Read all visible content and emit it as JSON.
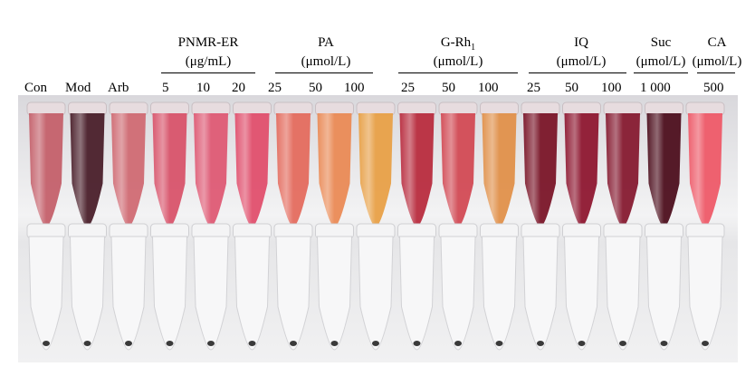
{
  "labels": {
    "con": "Con",
    "mod": "Mod",
    "arb": "Arb"
  },
  "groups": {
    "pnmr": {
      "name": "PNMR-ER",
      "unit": "(μg/mL)",
      "doses": [
        "5",
        "10",
        "20"
      ]
    },
    "pa": {
      "name": "PA",
      "unit": "(μmol/L)",
      "doses": [
        "25",
        "50",
        "100"
      ]
    },
    "grh": {
      "name": "G-Rh",
      "sub": "1",
      "unit": "(μmol/L)",
      "doses": [
        "25",
        "50",
        "100"
      ]
    },
    "iq": {
      "name": "IQ",
      "unit": "(μmol/L)",
      "doses": [
        "25",
        "50",
        "100"
      ]
    },
    "suc": {
      "name": "Suc",
      "unit": "(μmol/L)",
      "doses": [
        "1 000"
      ]
    },
    "ca": {
      "name": "CA",
      "unit": "(μmol/L)",
      "doses": [
        "500"
      ]
    }
  },
  "tube_colors": [
    "#c4606a",
    "#4a1f2a",
    "#d06a73",
    "#d8536a",
    "#de5a74",
    "#e04f6d",
    "#e46b5e",
    "#ea8a55",
    "#e8a047",
    "#b82c3e",
    "#d24a54",
    "#e0904a",
    "#7a1528",
    "#8e1730",
    "#861a30",
    "#4d0f1d",
    "#ee5a68"
  ]
}
